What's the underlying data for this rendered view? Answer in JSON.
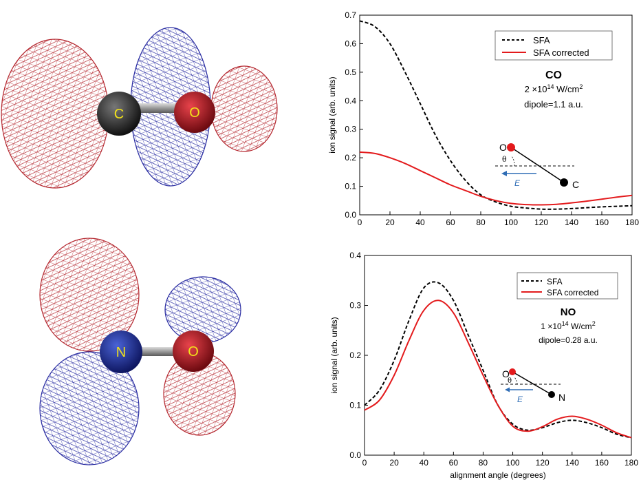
{
  "molecules": [
    {
      "atom1": "C",
      "atom2": "O",
      "atom1_color": "#2b2b2b",
      "atom2_color": "#b0101a"
    },
    {
      "atom1": "N",
      "atom2": "O",
      "atom1_color": "#1f2f8f",
      "atom2_color": "#b0101a"
    }
  ],
  "colors": {
    "lobe_red": "#b01a22",
    "lobe_blue": "#1c1f9c",
    "sfa": "#000000",
    "corrected": "#e31a1c",
    "label_yellow": "#f2e21a",
    "field_arrow": "#2f6db5"
  },
  "chart_data": [
    {
      "type": "line",
      "xlabel": "",
      "ylabel": "ion signal (arb. units)",
      "xlim": [
        0,
        180
      ],
      "ylim": [
        0,
        0.7
      ],
      "xticks": [
        "0",
        "20",
        "40",
        "60",
        "80",
        "100",
        "120",
        "140",
        "160",
        "180"
      ],
      "yticks": [
        "0.0",
        "0.1",
        "0.2",
        "0.3",
        "0.4",
        "0.5",
        "0.6",
        "0.7"
      ],
      "legend_position": "top-right",
      "series": [
        {
          "name": "SFA",
          "style": "dashed",
          "x": [
            0,
            10,
            20,
            30,
            40,
            50,
            60,
            70,
            80,
            90,
            100,
            110,
            120,
            130,
            140,
            150,
            160,
            170,
            180
          ],
          "y": [
            0.68,
            0.66,
            0.6,
            0.5,
            0.39,
            0.28,
            0.19,
            0.12,
            0.07,
            0.045,
            0.03,
            0.024,
            0.02,
            0.02,
            0.022,
            0.025,
            0.028,
            0.03,
            0.032
          ]
        },
        {
          "name": "SFA corrected",
          "style": "solid",
          "x": [
            0,
            10,
            20,
            30,
            40,
            50,
            60,
            70,
            80,
            90,
            100,
            110,
            120,
            130,
            140,
            150,
            160,
            170,
            180
          ],
          "y": [
            0.22,
            0.215,
            0.2,
            0.18,
            0.155,
            0.13,
            0.105,
            0.085,
            0.065,
            0.05,
            0.04,
            0.036,
            0.035,
            0.037,
            0.042,
            0.048,
            0.055,
            0.062,
            0.068
          ]
        }
      ],
      "annotation": {
        "molecule": "CO",
        "intensity_prefix": "2 ×10",
        "intensity_exp": "14",
        "intensity_unit": " W/cm",
        "unit_exp": "2",
        "dipole": "dipole=1.1 a.u.",
        "atom_top": "O",
        "atom_bottom": "C",
        "angle": "θ",
        "field": "E"
      }
    },
    {
      "type": "line",
      "xlabel": "alignment angle (degrees)",
      "ylabel": "ion signal (arb. units)",
      "xlim": [
        0,
        180
      ],
      "ylim": [
        0,
        0.4
      ],
      "xticks": [
        "0",
        "20",
        "40",
        "60",
        "80",
        "100",
        "120",
        "140",
        "160",
        "180"
      ],
      "yticks": [
        "0.0",
        "0.1",
        "0.2",
        "0.3",
        "0.4"
      ],
      "legend_position": "top-right",
      "series": [
        {
          "name": "SFA",
          "style": "dashed",
          "x": [
            0,
            10,
            20,
            30,
            40,
            50,
            60,
            70,
            80,
            90,
            100,
            110,
            120,
            130,
            140,
            150,
            160,
            170,
            180
          ],
          "y": [
            0.1,
            0.13,
            0.19,
            0.27,
            0.335,
            0.345,
            0.31,
            0.24,
            0.17,
            0.1,
            0.062,
            0.05,
            0.055,
            0.065,
            0.07,
            0.065,
            0.055,
            0.042,
            0.035
          ]
        },
        {
          "name": "SFA corrected",
          "style": "solid",
          "x": [
            0,
            10,
            20,
            30,
            40,
            50,
            60,
            70,
            80,
            90,
            100,
            110,
            120,
            130,
            140,
            150,
            160,
            170,
            180
          ],
          "y": [
            0.09,
            0.11,
            0.16,
            0.23,
            0.29,
            0.31,
            0.285,
            0.225,
            0.16,
            0.1,
            0.058,
            0.048,
            0.057,
            0.072,
            0.078,
            0.072,
            0.06,
            0.045,
            0.035
          ]
        }
      ],
      "annotation": {
        "molecule": "NO",
        "intensity_prefix": "1 ×10",
        "intensity_exp": "14",
        "intensity_unit": "  W/cm",
        "unit_exp": "2",
        "dipole": "dipole=0.28 a.u.",
        "atom_top": "O",
        "atom_bottom": "N",
        "angle": "θ",
        "field": "E"
      }
    }
  ]
}
